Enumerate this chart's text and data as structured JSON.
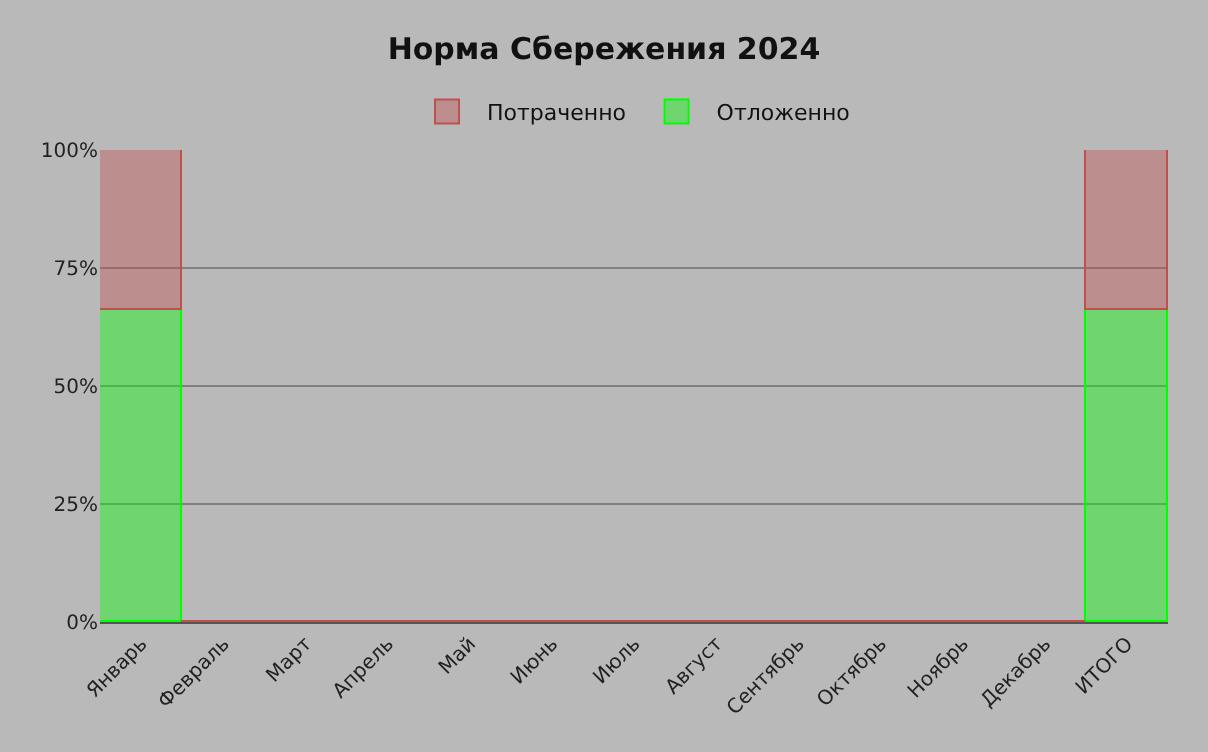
{
  "chart_data": {
    "type": "bar",
    "title": "Норма Сбережения 2024",
    "stacked": true,
    "categories": [
      "Январь",
      "Февраль",
      "Март",
      "Апрель",
      "Май",
      "Июнь",
      "Июль",
      "Август",
      "Сентябрь",
      "Октябрь",
      "Ноябрь",
      "Декабрь",
      "ИТОГО"
    ],
    "series": [
      {
        "name": "Отложенно",
        "color": "#00ff00",
        "values": [
          66,
          0,
          0,
          0,
          0,
          0,
          0,
          0,
          0,
          0,
          0,
          0,
          66
        ]
      },
      {
        "name": "Потраченно",
        "color": "#c0504d",
        "values": [
          34,
          0,
          0,
          0,
          0,
          0,
          0,
          0,
          0,
          0,
          0,
          0,
          34
        ]
      }
    ],
    "ylim": [
      0,
      100
    ],
    "yticks": [
      {
        "value": 0,
        "label": "0%"
      },
      {
        "value": 25,
        "label": "25%"
      },
      {
        "value": 50,
        "label": "50%"
      },
      {
        "value": 75,
        "label": "75%"
      },
      {
        "value": 100,
        "label": "100%"
      }
    ],
    "grid": "y",
    "legend": "top"
  }
}
